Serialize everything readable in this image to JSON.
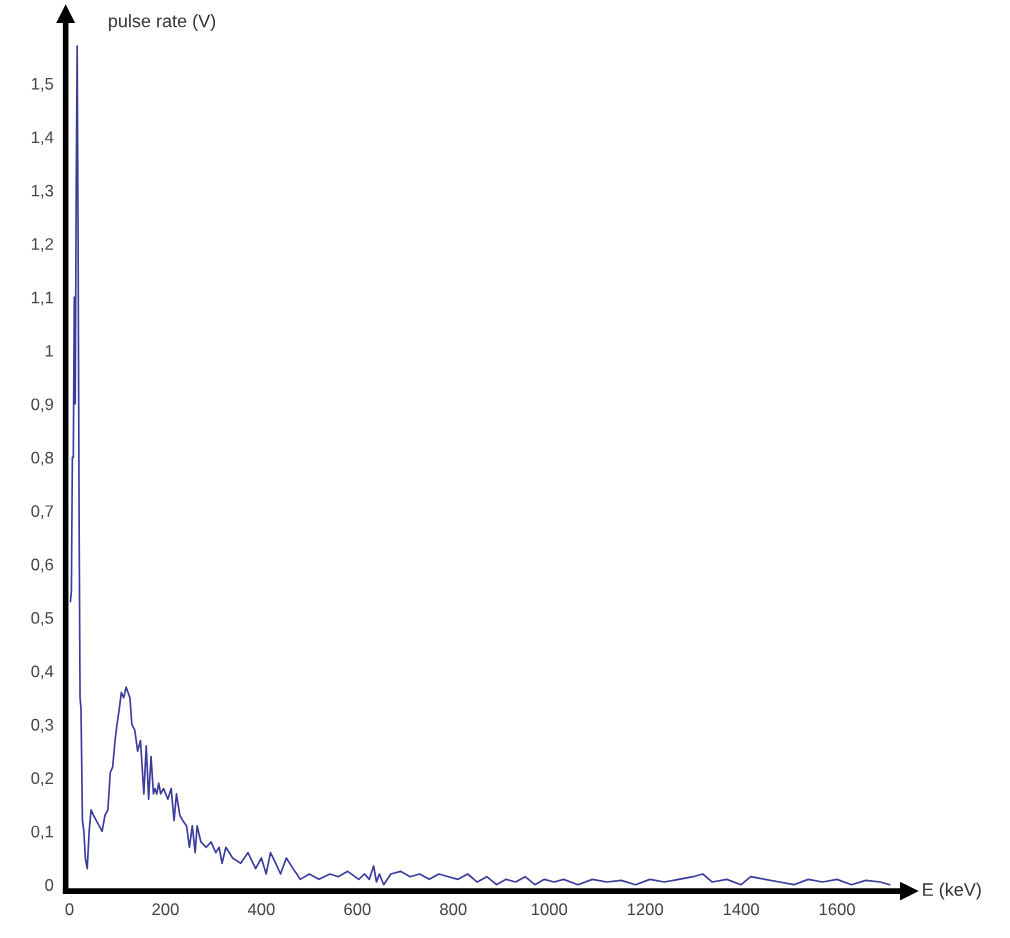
{
  "chart_data": {
    "type": "line",
    "xlabel": "E (keV)",
    "ylabel": "pulse rate (V)",
    "xlim": [
      -8,
      1750
    ],
    "ylim": [
      -0.012,
      1.63
    ],
    "xticks": [
      0,
      200,
      400,
      600,
      800,
      1000,
      1200,
      1400,
      1600
    ],
    "yticks": [
      0,
      {
        "value": 0.1,
        "label": "0,1"
      },
      {
        "value": 0.2,
        "label": "0,2"
      },
      {
        "value": 0.3,
        "label": "0,3"
      },
      {
        "value": 0.4,
        "label": "0,4"
      },
      {
        "value": 0.5,
        "label": "0,5"
      },
      {
        "value": 0.6,
        "label": "0,6"
      },
      {
        "value": 0.7,
        "label": "0,7"
      },
      {
        "value": 0.8,
        "label": "0,8"
      },
      {
        "value": 0.9,
        "label": "0,9"
      },
      1,
      {
        "value": 1.1,
        "label": "1,1"
      },
      {
        "value": 1.2,
        "label": "1,2"
      },
      {
        "value": 1.3,
        "label": "1,3"
      },
      {
        "value": 1.4,
        "label": "1,4"
      },
      {
        "value": 1.5,
        "label": "1,5"
      }
    ],
    "grid": false,
    "marker": "none",
    "line_style": "solid",
    "series": [
      {
        "color": "#3b3b9c",
        "x": [
          2,
          4,
          6,
          8,
          10,
          12,
          14,
          16,
          18,
          20,
          22,
          24,
          27,
          30,
          33,
          37,
          41,
          45,
          50,
          56,
          62,
          68,
          74,
          80,
          85,
          90,
          95,
          99,
          104,
          108,
          113,
          118,
          122,
          126,
          130,
          136,
          142,
          148,
          155,
          160,
          165,
          170,
          175,
          178,
          182,
          186,
          190,
          196,
          205,
          212,
          218,
          223,
          230,
          236,
          244,
          250,
          256,
          262,
          266,
          274,
          285,
          295,
          305,
          312,
          318,
          326,
          340,
          357,
          372,
          388,
          400,
          410,
          419,
          430,
          440,
          452,
          466,
          474,
          481,
          500,
          520,
          543,
          560,
          580,
          603,
          615,
          625,
          634,
          640,
          646,
          655,
          670,
          690,
          710,
          730,
          750,
          770,
          790,
          810,
          830,
          850,
          870,
          890,
          910,
          930,
          950,
          970,
          990,
          1010,
          1030,
          1060,
          1090,
          1120,
          1150,
          1180,
          1210,
          1240,
          1270,
          1300,
          1320,
          1340,
          1370,
          1400,
          1420,
          1450,
          1480,
          1510,
          1540,
          1570,
          1600,
          1630,
          1660,
          1690,
          1710
        ],
        "values": [
          0.53,
          0.55,
          0.8,
          0.8,
          1.1,
          0.9,
          1.3,
          1.57,
          1.2,
          0.7,
          0.35,
          0.33,
          0.12,
          0.1,
          0.05,
          0.03,
          0.1,
          0.14,
          0.13,
          0.12,
          0.11,
          0.1,
          0.13,
          0.14,
          0.21,
          0.22,
          0.27,
          0.3,
          0.33,
          0.36,
          0.35,
          0.37,
          0.36,
          0.35,
          0.3,
          0.29,
          0.25,
          0.27,
          0.17,
          0.26,
          0.16,
          0.24,
          0.17,
          0.18,
          0.17,
          0.19,
          0.17,
          0.18,
          0.16,
          0.18,
          0.12,
          0.17,
          0.13,
          0.12,
          0.11,
          0.07,
          0.11,
          0.06,
          0.11,
          0.08,
          0.07,
          0.08,
          0.06,
          0.07,
          0.04,
          0.07,
          0.05,
          0.04,
          0.06,
          0.03,
          0.05,
          0.02,
          0.06,
          0.04,
          0.02,
          0.05,
          0.03,
          0.02,
          0.01,
          0.02,
          0.01,
          0.02,
          0.015,
          0.025,
          0.01,
          0.02,
          0.01,
          0.035,
          0.005,
          0.02,
          0.0,
          0.02,
          0.025,
          0.015,
          0.02,
          0.01,
          0.02,
          0.015,
          0.01,
          0.02,
          0.005,
          0.015,
          0.0,
          0.01,
          0.005,
          0.015,
          0.0,
          0.01,
          0.005,
          0.01,
          0.0,
          0.01,
          0.005,
          0.008,
          0.0,
          0.01,
          0.005,
          0.01,
          0.015,
          0.02,
          0.005,
          0.01,
          0.0,
          0.015,
          0.01,
          0.005,
          0.0,
          0.01,
          0.005,
          0.01,
          0.0,
          0.008,
          0.005,
          0.0
        ]
      }
    ]
  }
}
